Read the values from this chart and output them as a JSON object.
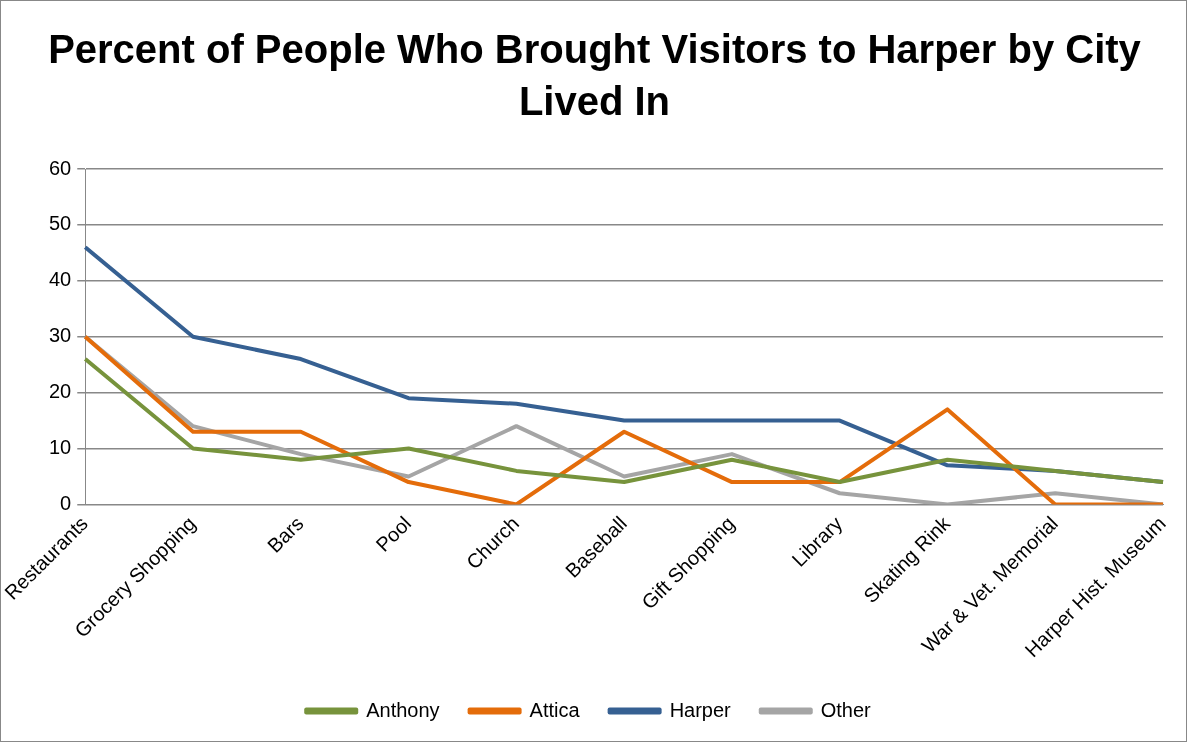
{
  "chart_data": {
    "type": "line",
    "title": "Percent of People Who Brought Visitors to Harper by City Lived In",
    "categories": [
      "Restaurants",
      "Grocery Shopping",
      "Bars",
      "Pool",
      "Church",
      "Baseball",
      "Gift Shopping",
      "Library",
      "Skating Rink",
      "War & Vet. Memorial",
      "Harper Hist. Museum"
    ],
    "series": [
      {
        "name": "Anthony",
        "color": "#77933c",
        "values": [
          26,
          10,
          8,
          10,
          6,
          4,
          8,
          4,
          8,
          6,
          4
        ]
      },
      {
        "name": "Attica",
        "color": "#e46c0a",
        "values": [
          30,
          13,
          13,
          4,
          0,
          13,
          4,
          4,
          17,
          0,
          0
        ]
      },
      {
        "name": "Harper",
        "color": "#366092",
        "values": [
          46,
          30,
          26,
          19,
          18,
          15,
          15,
          15,
          7,
          6,
          4
        ]
      },
      {
        "name": "Other",
        "color": "#a5a5a5",
        "values": [
          30,
          14,
          9,
          5,
          14,
          5,
          9,
          2,
          0,
          2,
          0
        ]
      }
    ],
    "ylim": [
      0,
      60
    ],
    "yticks": [
      0,
      10,
      20,
      30,
      40,
      50,
      60
    ],
    "grid": "y",
    "legend": "bottom",
    "marker": "none",
    "line_style": "solid"
  }
}
